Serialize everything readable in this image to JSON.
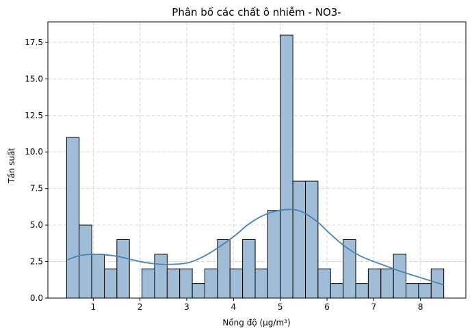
{
  "chart_data": {
    "type": "bar",
    "subtype": "histogram",
    "title": "Phân bố các chất ô nhiễm - NO3-",
    "xlabel": "Nồng độ (µg/m³)",
    "ylabel": "Tần suất",
    "xlim": [
      0.03,
      8.97
    ],
    "ylim": [
      0,
      18.9
    ],
    "xticks": [
      {
        "v": 1,
        "label": "1"
      },
      {
        "v": 2,
        "label": "2"
      },
      {
        "v": 3,
        "label": "3"
      },
      {
        "v": 4,
        "label": "4"
      },
      {
        "v": 5,
        "label": "5"
      },
      {
        "v": 6,
        "label": "6"
      },
      {
        "v": 7,
        "label": "7"
      },
      {
        "v": 8,
        "label": "8"
      }
    ],
    "yticks": [
      {
        "v": 0,
        "label": "0.0"
      },
      {
        "v": 2.5,
        "label": "2.5"
      },
      {
        "v": 5,
        "label": "5.0"
      },
      {
        "v": 7.5,
        "label": "7.5"
      },
      {
        "v": 10,
        "label": "10.0"
      },
      {
        "v": 12.5,
        "label": "12.5"
      },
      {
        "v": 15,
        "label": "15.0"
      },
      {
        "v": 17.5,
        "label": "17.5"
      }
    ],
    "grid": true,
    "bins_start": 0.43,
    "bin_width": 0.2689,
    "counts": [
      11,
      5,
      3,
      2,
      4,
      0,
      2,
      3,
      2,
      2,
      1,
      2,
      4,
      2,
      4,
      2,
      6,
      18,
      8,
      8,
      2,
      1,
      4,
      1,
      2,
      2,
      3,
      1,
      1,
      2
    ],
    "kde": {
      "x": [
        0.43,
        0.7,
        1.0,
        1.3,
        1.6,
        2.0,
        2.3,
        2.6,
        3.0,
        3.3,
        3.6,
        4.0,
        4.3,
        4.6,
        4.9,
        5.1,
        5.3,
        5.5,
        5.8,
        6.1,
        6.4,
        6.7,
        7.0,
        7.3,
        7.6,
        7.9,
        8.2,
        8.5
      ],
      "y": [
        2.6,
        2.9,
        3.0,
        2.95,
        2.8,
        2.5,
        2.35,
        2.3,
        2.4,
        2.75,
        3.3,
        4.2,
        5.0,
        5.6,
        5.95,
        6.05,
        6.05,
        5.85,
        5.2,
        4.3,
        3.5,
        2.9,
        2.5,
        2.15,
        1.8,
        1.5,
        1.2,
        0.9
      ]
    },
    "colors": {
      "bar_fill": "#a0bcd7",
      "bar_edge": "#000000",
      "kde_line": "#4682b4",
      "grid": "#cccccc"
    }
  }
}
